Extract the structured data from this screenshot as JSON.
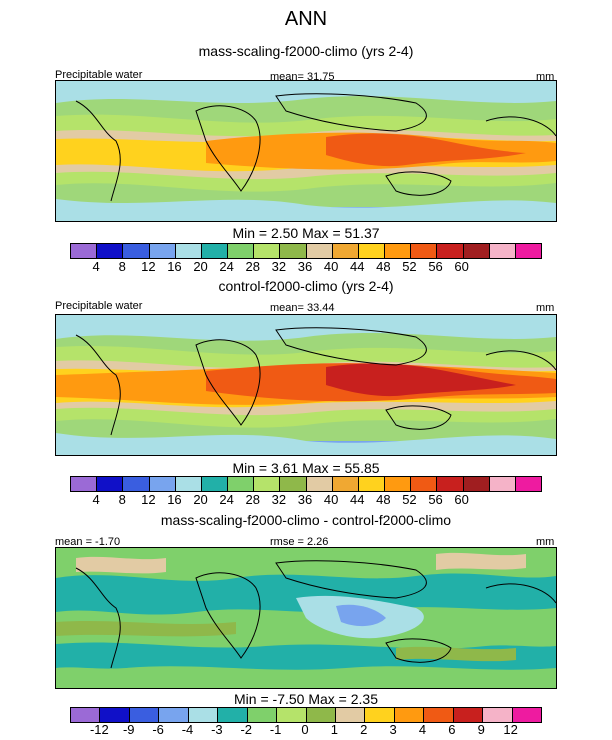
{
  "figure_title": "ANN",
  "panel1": {
    "title": "mass-scaling-f2000-climo (yrs 2-4)",
    "variable": "Precipitable water",
    "mean": "mean=  31.75",
    "units": "mm",
    "minmax": "Min =   2.50 Max =  51.37"
  },
  "panel2": {
    "title": "control-f2000-climo (yrs 2-4)",
    "variable": "Precipitable water",
    "mean": "mean=  33.44",
    "units": "mm",
    "minmax": "Min =   3.61 Max =  55.85"
  },
  "panel3": {
    "title": "mass-scaling-f2000-climo - control-f2000-climo",
    "mean": "mean =  -1.70",
    "rmse": "rmse =   2.26",
    "units": "mm",
    "minmax": "Min =  -7.50 Max =   2.35"
  },
  "colorbar_main": {
    "colors": [
      "#9b6ad6",
      "#1010c8",
      "#3a5ee0",
      "#78a4ee",
      "#aadfe6",
      "#22b0a8",
      "#7fd06b",
      "#b5e36a",
      "#8fb84a",
      "#e2cba4",
      "#f0a832",
      "#ffd21e",
      "#ff9a10",
      "#f05a14",
      "#c8201e",
      "#a01e20",
      "#f5b3c8",
      "#ee1ba0"
    ],
    "ticks": [
      "4",
      "8",
      "12",
      "16",
      "20",
      "24",
      "28",
      "32",
      "36",
      "40",
      "44",
      "48",
      "52",
      "56",
      "60"
    ]
  },
  "colorbar_diff": {
    "colors": [
      "#9b6ad6",
      "#1010c8",
      "#3a5ee0",
      "#78a4ee",
      "#aadfe6",
      "#22b0a8",
      "#7fd06b",
      "#b5e36a",
      "#8fb84a",
      "#e2cba4",
      "#ffd21e",
      "#ff9a10",
      "#f05a14",
      "#c8201e",
      "#f5b3c8",
      "#ee1ba0"
    ],
    "ticks": [
      "-12",
      "-9",
      "-6",
      "-4",
      "-3",
      "-2",
      "-1",
      "0",
      "1",
      "2",
      "3",
      "4",
      "6",
      "9",
      "12"
    ]
  }
}
